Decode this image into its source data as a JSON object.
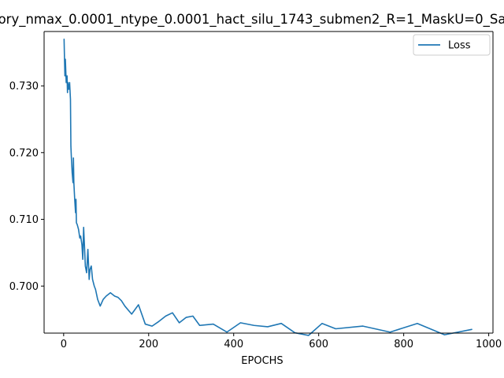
{
  "chart_data": {
    "type": "line",
    "title": "ory_nmax_0.0001_ntype_0.0001_hact_silu_1743_submen2_R=1_MaskU=0_Sa",
    "xlabel": "EPOCHS",
    "ylabel": "",
    "xlim": [
      -46,
      1010
    ],
    "ylim": [
      0.69295,
      0.73815
    ],
    "xticks": [
      0,
      200,
      400,
      600,
      800,
      1000
    ],
    "yticks": [
      0.7,
      0.71,
      0.72,
      0.73
    ],
    "ytick_labels": [
      "0.700",
      "0.710",
      "0.720",
      "0.730"
    ],
    "grid": false,
    "legend": {
      "position": "upper right"
    },
    "series": [
      {
        "name": "Loss",
        "color": "#1f77b4",
        "x": [
          1,
          2,
          3,
          4,
          6,
          8,
          9,
          10,
          12,
          14,
          16,
          17,
          18,
          20,
          22,
          23,
          24,
          26,
          28,
          29,
          30,
          32,
          35,
          38,
          40,
          43,
          45,
          47,
          49,
          51,
          54,
          57,
          60,
          62,
          65,
          68,
          72,
          75,
          80,
          86,
          93,
          100,
          110,
          120,
          128,
          136,
          144,
          160,
          176,
          192,
          208,
          224,
          240,
          256,
          272,
          288,
          304,
          320,
          352,
          384,
          416,
          448,
          480,
          512,
          544,
          576,
          608,
          640,
          704,
          768,
          832,
          896,
          960
        ],
        "y": [
          0.737,
          0.734,
          0.7315,
          0.734,
          0.7305,
          0.7315,
          0.729,
          0.7305,
          0.7295,
          0.7305,
          0.728,
          0.721,
          0.7195,
          0.717,
          0.7155,
          0.7192,
          0.7155,
          0.713,
          0.711,
          0.713,
          0.7095,
          0.7092,
          0.7085,
          0.7072,
          0.7075,
          0.7062,
          0.704,
          0.7088,
          0.706,
          0.703,
          0.702,
          0.7055,
          0.701,
          0.7025,
          0.703,
          0.701,
          0.7,
          0.6995,
          0.698,
          0.697,
          0.698,
          0.6985,
          0.699,
          0.6985,
          0.6983,
          0.6978,
          0.697,
          0.6958,
          0.6972,
          0.6943,
          0.694,
          0.6947,
          0.6955,
          0.696,
          0.6945,
          0.6953,
          0.6955,
          0.6941,
          0.6943,
          0.6931,
          0.6945,
          0.6941,
          0.6939,
          0.6944,
          0.693,
          0.6926,
          0.6944,
          0.6936,
          0.694,
          0.6931,
          0.6944,
          0.6927,
          0.6935
        ]
      }
    ]
  }
}
